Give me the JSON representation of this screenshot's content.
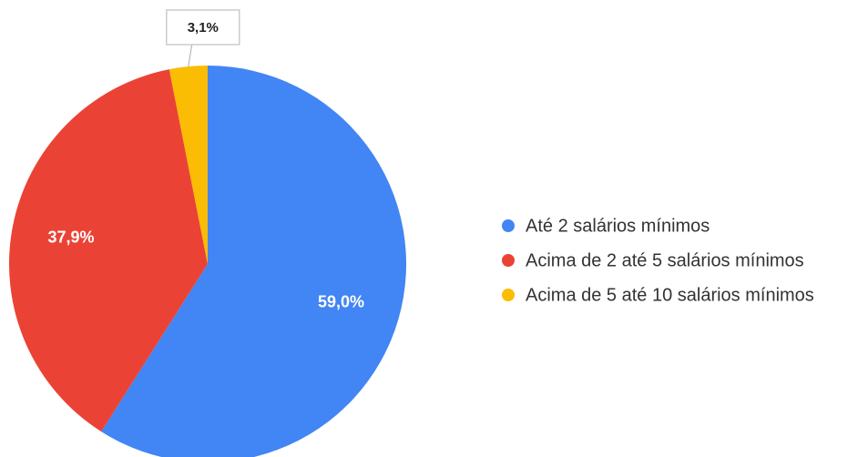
{
  "chart_data": {
    "type": "pie",
    "categories": [
      "Até 2 salários mínimos",
      "Acima de 2 até 5 salários mínimos",
      "Acima de 5 até 10 salários mínimos"
    ],
    "values": [
      59.0,
      37.9,
      3.1
    ],
    "value_labels": [
      "59,0%",
      "37,9%",
      "3,1%"
    ],
    "colors": [
      "#4285f4",
      "#ea4335",
      "#fbbc04"
    ],
    "legend": "right"
  }
}
